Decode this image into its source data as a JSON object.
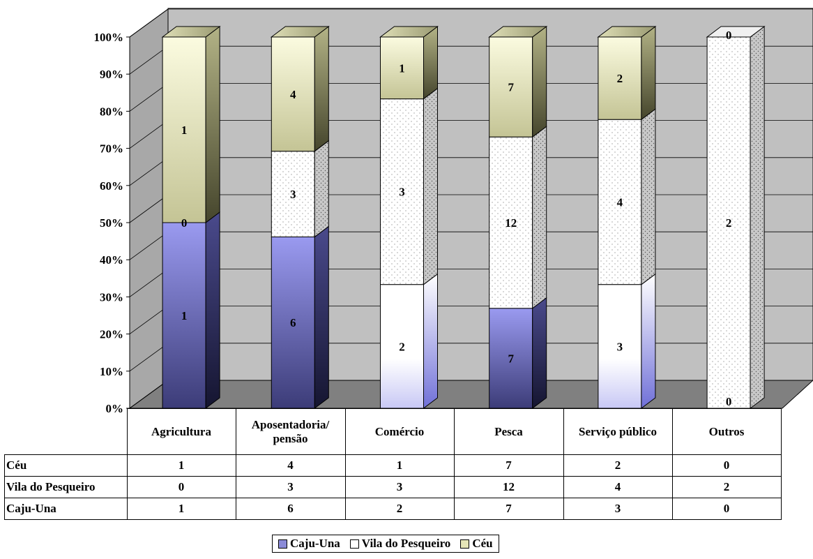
{
  "chart_data": {
    "type": "bar",
    "stacked": "percent",
    "categories": [
      "Agricultura",
      "Aposentadoria/ pensão",
      "Comércio",
      "Pesca",
      "Serviço público",
      "Outros"
    ],
    "category_lines": [
      [
        "Agricultura"
      ],
      [
        "Aposentadoria/",
        "pensão"
      ],
      [
        "Comércio"
      ],
      [
        "Pesca"
      ],
      [
        "Serviço público"
      ],
      [
        "Outros"
      ]
    ],
    "series": [
      {
        "name": "Caju-Una",
        "values": [
          1,
          6,
          2,
          7,
          3,
          0
        ],
        "color": "#8b8bd8"
      },
      {
        "name": "Vila do Pesqueiro",
        "values": [
          0,
          3,
          3,
          12,
          4,
          2
        ],
        "color": "#ffffff"
      },
      {
        "name": "Céu",
        "values": [
          1,
          4,
          1,
          7,
          2,
          0
        ],
        "color": "#e6e6b8"
      }
    ],
    "y_ticks": [
      "0%",
      "10%",
      "20%",
      "30%",
      "40%",
      "50%",
      "60%",
      "70%",
      "80%",
      "90%",
      "100%"
    ],
    "ylim": [
      0,
      100
    ],
    "grid": true,
    "legend_position": "bottom",
    "data_table": true
  }
}
